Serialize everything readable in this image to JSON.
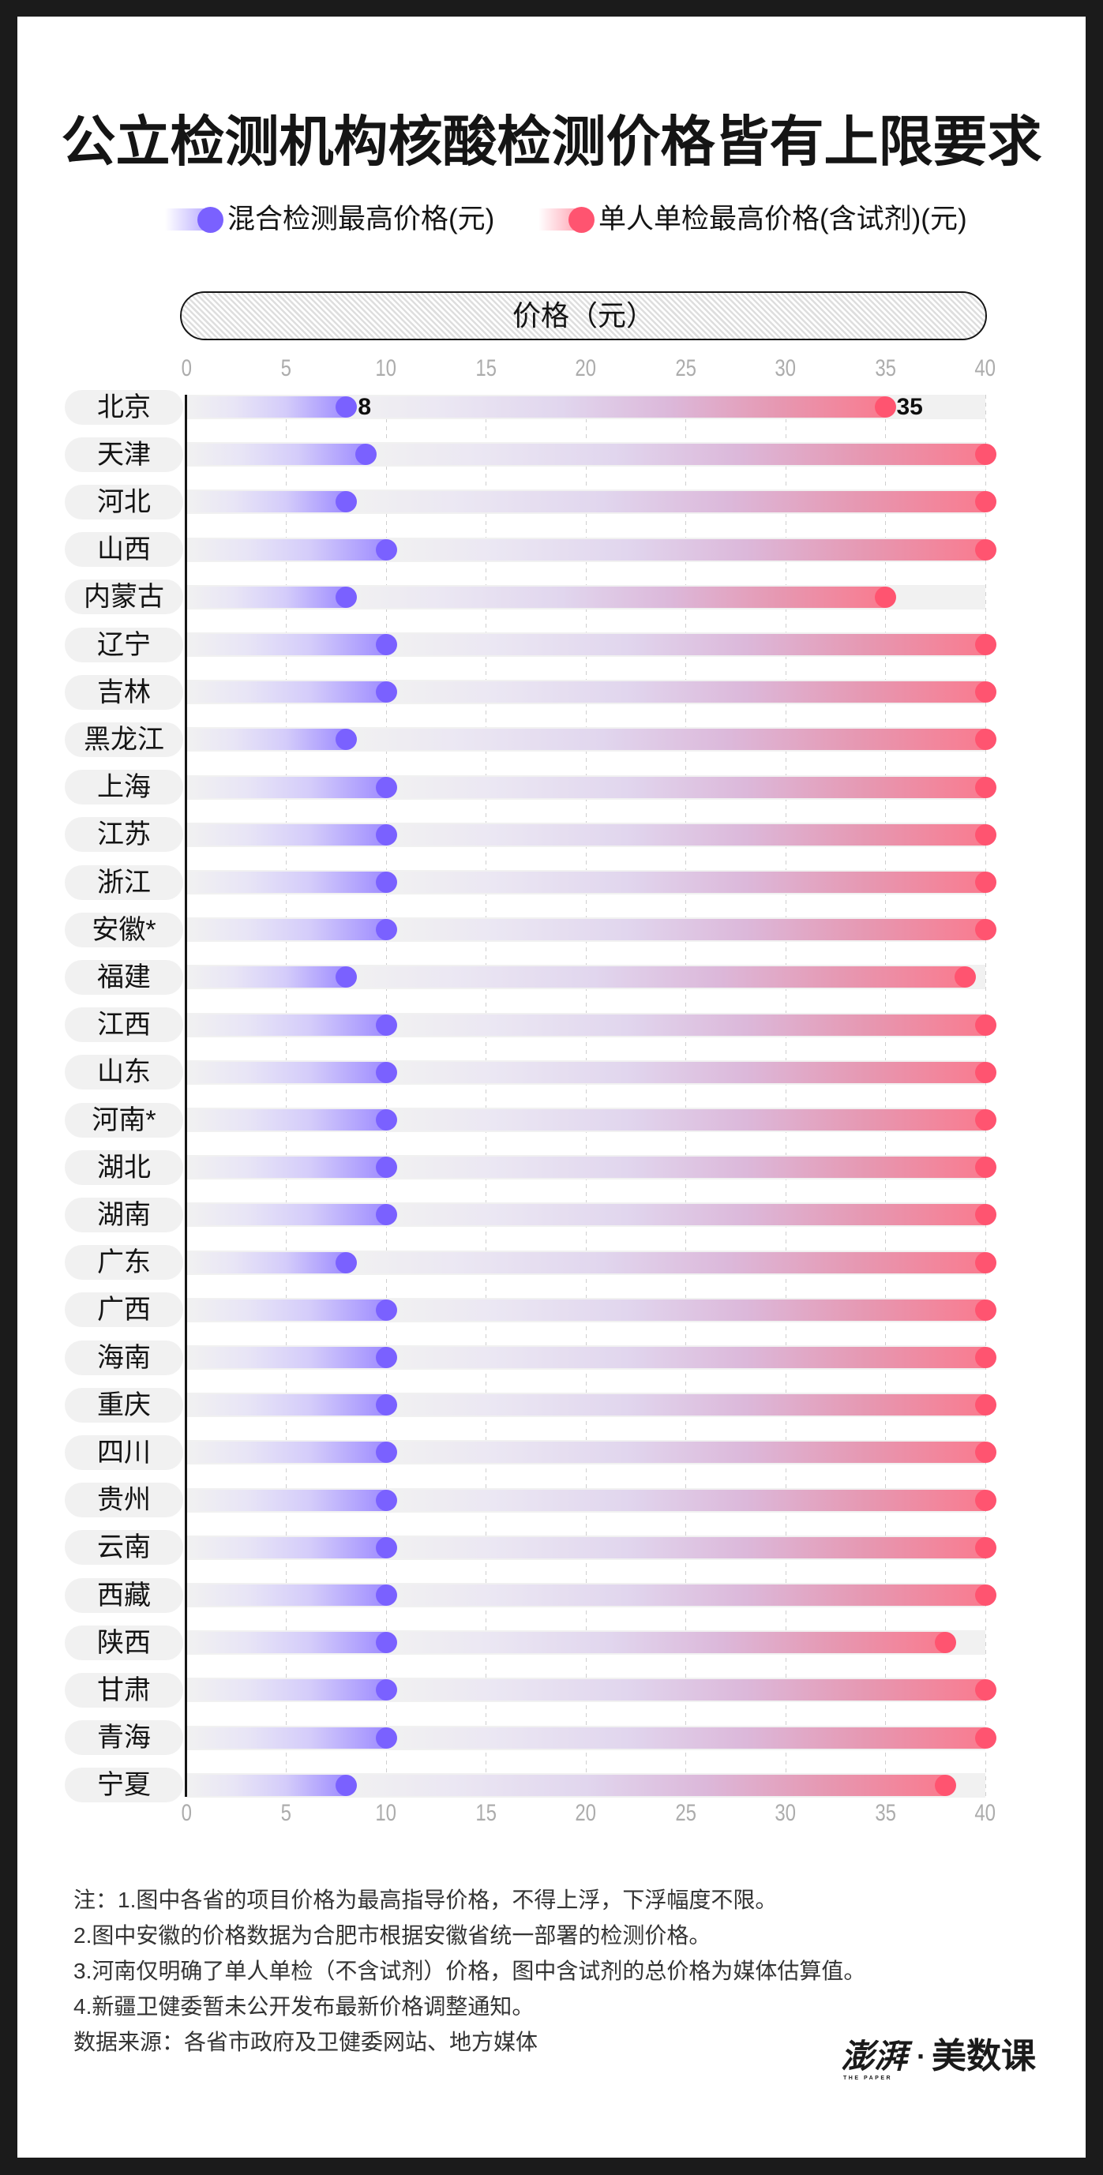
{
  "title": "公立检测机构核酸检测价格皆有上限要求",
  "legend": [
    {
      "label": "混合检测最高价格(元)",
      "color": "#7A61FF",
      "icon": "circle-dot"
    },
    {
      "label": "单人单检最高价格(含试剂)(元)",
      "color": "#FF5470",
      "icon": "circle-dot"
    }
  ],
  "axis": {
    "title": "价格（元）",
    "ticks": [
      "0",
      "5",
      "10",
      "15",
      "20",
      "25",
      "30",
      "35",
      "40"
    ]
  },
  "chart_data": {
    "type": "bar",
    "orientation": "horizontal",
    "style": "dumbbell",
    "title": "公立检测机构核酸检测价格皆有上限要求",
    "xlabel": "价格（元）",
    "ylabel": "",
    "xlim": [
      0,
      40
    ],
    "xticks": [
      0,
      5,
      10,
      15,
      20,
      25,
      30,
      35,
      40
    ],
    "grid": true,
    "legend_position": "top",
    "categories": [
      "北京",
      "天津",
      "河北",
      "山西",
      "内蒙古",
      "辽宁",
      "吉林",
      "黑龙江",
      "上海",
      "江苏",
      "浙江",
      "安徽*",
      "福建",
      "江西",
      "山东",
      "河南*",
      "湖北",
      "湖南",
      "广东",
      "广西",
      "海南",
      "重庆",
      "四川",
      "贵州",
      "云南",
      "西藏",
      "陕西",
      "甘肃",
      "青海",
      "宁夏"
    ],
    "series": [
      {
        "name": "混合检测最高价格(元)",
        "color": "#7A61FF",
        "values": [
          8,
          9,
          8,
          10,
          8,
          10,
          10,
          8,
          10,
          10,
          10,
          10,
          8,
          10,
          10,
          10,
          10,
          10,
          8,
          10,
          10,
          10,
          10,
          10,
          10,
          10,
          10,
          10,
          10,
          8
        ]
      },
      {
        "name": "单人单检最高价格(含试剂)(元)",
        "color": "#FF5470",
        "values": [
          35,
          40,
          40,
          40,
          35,
          40,
          40,
          40,
          40,
          40,
          40,
          40,
          39,
          40,
          40,
          40,
          40,
          40,
          40,
          40,
          40,
          40,
          40,
          40,
          40,
          40,
          38,
          40,
          40,
          38
        ]
      }
    ],
    "data_labels": [
      {
        "row": 0,
        "series": 0,
        "text": "8"
      },
      {
        "row": 0,
        "series": 1,
        "text": "35"
      }
    ]
  },
  "notes": [
    "注：1.图中各省的项目价格为最高指导价格，不得上浮，下浮幅度不限。",
    "2.图中安徽的价格数据为合肥市根据安徽省统一部署的检测价格。",
    "3.河南仅明确了单人单检（不含试剂）价格，图中含试剂的总价格为媒体估算值。",
    "4.新疆卫健委暂未公开发布最新价格调整通知。",
    "数据来源：各省市政府及卫健委网站、地方媒体"
  ],
  "logo": {
    "brand": "澎湃",
    "brand_en": "THE PAPER",
    "separator": "·",
    "sub": "美数课"
  },
  "colors": {
    "background": "#1B1B1B",
    "card": "#FFFFFF",
    "track": "#F1F1F1",
    "mixed": "#7A61FF",
    "single": "#FF5470",
    "tick": "#ACACAC"
  }
}
